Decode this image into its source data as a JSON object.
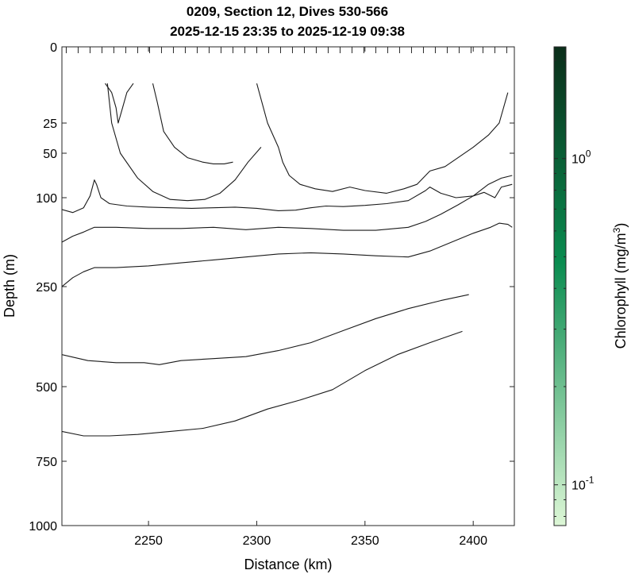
{
  "title_line1": "0209, Section 12, Dives 530-566",
  "title_line2": "2025-12-15 23:35 to 2025-12-19 09:38",
  "chart_data": {
    "type": "contour",
    "xlabel": "Distance (km)",
    "ylabel": "Depth (m)",
    "xlim": [
      2210,
      2419
    ],
    "ylim": [
      0,
      1000
    ],
    "y_scale": "nonlinear",
    "grid": false,
    "x_ticks": [
      2250,
      2300,
      2350,
      2400
    ],
    "y_ticks": [
      0,
      25,
      50,
      100,
      250,
      500,
      750,
      1000
    ],
    "y_tick_labels": [
      "0",
      "25",
      "50",
      "100",
      "250",
      "500",
      "750",
      "1000"
    ],
    "contour_color": "#1a1a1a",
    "colorbar": {
      "label": "Chlorophyll (mg/m^3)",
      "label_text": "Chlorophyll (mg/m",
      "label_sup": "3",
      "label_close": ")",
      "scale": "log",
      "range": [
        0.075,
        2.2
      ],
      "ticks": [
        0.1,
        1
      ],
      "tick_labels": [
        {
          "base": "10",
          "exp": "-1"
        },
        {
          "base": "10",
          "exp": "0"
        }
      ],
      "color_low": "#ddf7d6",
      "color_mid": "#0a8c50",
      "color_high": "#0b2e1a"
    },
    "contours": [
      {
        "x": [
          2230,
          2233,
          2235,
          2236,
          2238,
          2240,
          2243
        ],
        "y": [
          12,
          15,
          20,
          25,
          20,
          15,
          12
        ]
      },
      {
        "x": [
          2252,
          2254,
          2257,
          2262,
          2268,
          2275,
          2280,
          2285,
          2289
        ],
        "y": [
          12,
          18,
          32,
          45,
          55,
          60,
          62,
          62,
          60
        ]
      },
      {
        "x": [
          2231,
          2233,
          2237,
          2245,
          2252,
          2260,
          2268,
          2276,
          2283,
          2290,
          2296,
          2302
        ],
        "y": [
          12,
          25,
          50,
          78,
          93,
          103,
          105,
          103,
          95,
          80,
          60,
          45
        ]
      },
      {
        "x": [
          2300,
          2305,
          2310,
          2312,
          2315,
          2320,
          2327,
          2335,
          2343,
          2350,
          2360,
          2368,
          2374,
          2380,
          2387,
          2393,
          2400,
          2407,
          2412,
          2416
        ],
        "y": [
          12,
          25,
          45,
          60,
          75,
          85,
          90,
          93,
          88,
          92,
          95,
          90,
          85,
          70,
          65,
          55,
          45,
          35,
          25,
          15
        ]
      },
      {
        "x": [
          2210,
          2215,
          2220,
          2223,
          2225,
          2226,
          2228,
          2232,
          2240,
          2250,
          2260,
          2270,
          2280,
          2290,
          2300,
          2310,
          2318,
          2325,
          2332,
          2340,
          2350,
          2360,
          2370,
          2378,
          2380,
          2385,
          2392,
          2400,
          2407,
          2413,
          2418
        ],
        "y": [
          120,
          125,
          117,
          98,
          80,
          85,
          100,
          110,
          114,
          116,
          117,
          118,
          117,
          116,
          118,
          122,
          121,
          117,
          114,
          115,
          113,
          110,
          105,
          92,
          88,
          95,
          100,
          98,
          85,
          78,
          75
        ],
        "cells": [
          12,
          38,
          48,
          65,
          81,
          135,
          150,
          160,
          176,
          215,
          240,
          262,
          282,
          303
        ]
      },
      {
        "x": [
          2210,
          2215,
          2220,
          2225,
          2235,
          2250,
          2265,
          2280,
          2295,
          2310,
          2325,
          2340,
          2355,
          2370,
          2378,
          2385,
          2393,
          2400,
          2405,
          2410,
          2413,
          2418
        ],
        "y": [
          175,
          165,
          158,
          150,
          150,
          152,
          152,
          150,
          154,
          150,
          152,
          155,
          155,
          150,
          140,
          128,
          112,
          98,
          94,
          100,
          88,
          85
        ]
      },
      {
        "x": [
          2210,
          2215,
          2220,
          2225,
          2235,
          2250,
          2265,
          2280,
          2295,
          2310,
          2325,
          2340,
          2355,
          2370,
          2380,
          2390,
          2400,
          2408,
          2412,
          2416,
          2418
        ],
        "y": [
          250,
          235,
          225,
          218,
          218,
          215,
          210,
          205,
          200,
          195,
          193,
          195,
          198,
          200,
          190,
          175,
          160,
          150,
          143,
          145,
          150
        ]
      },
      {
        "x": [
          2210,
          2222,
          2235,
          2248,
          2255,
          2265,
          2280,
          2295,
          2310,
          2325,
          2340,
          2355,
          2370,
          2385,
          2398
        ],
        "y": [
          420,
          435,
          440,
          440,
          445,
          435,
          430,
          425,
          410,
          390,
          360,
          330,
          305,
          285,
          270
        ]
      },
      {
        "x": [
          2210,
          2220,
          2232,
          2245,
          2260,
          2275,
          2290,
          2305,
          2320,
          2335,
          2350,
          2365,
          2380,
          2395
        ],
        "y": [
          650,
          665,
          665,
          660,
          650,
          640,
          615,
          575,
          545,
          510,
          460,
          420,
          390,
          362
        ]
      }
    ]
  }
}
